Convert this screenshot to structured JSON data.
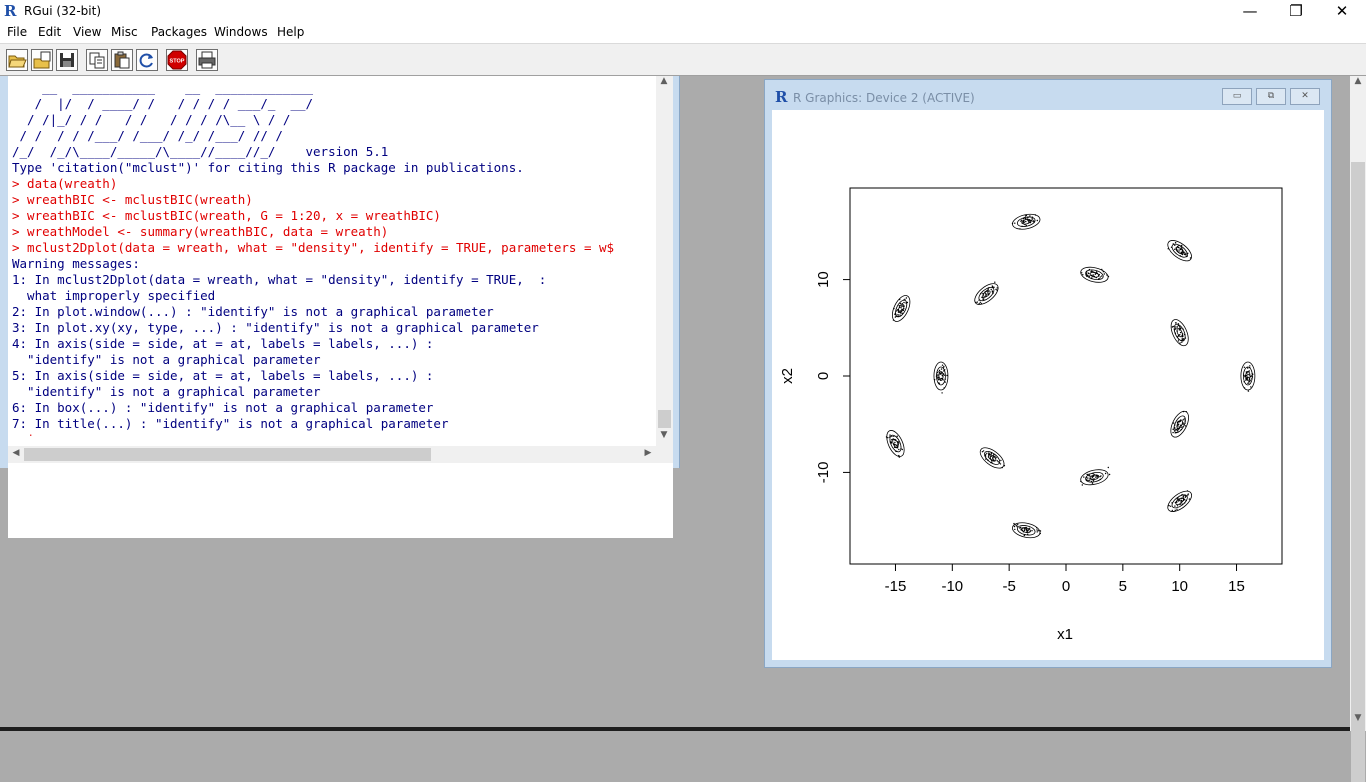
{
  "window": {
    "title": "RGui (32-bit)",
    "icon": "r-logo-icon",
    "controls": {
      "minimize": "—",
      "maximize": "❐",
      "close": "✕"
    }
  },
  "menu": [
    "File",
    "Edit",
    "View",
    "Misc",
    "Packages",
    "Windows",
    "Help"
  ],
  "toolbar": [
    {
      "name": "open-script-button",
      "icon": "open-folder-icon"
    },
    {
      "name": "load-workspace-button",
      "icon": "load-workspace-icon"
    },
    {
      "name": "save-workspace-button",
      "icon": "save-icon"
    },
    {
      "name": "copy-button",
      "icon": "copy-icon"
    },
    {
      "name": "paste-button",
      "icon": "paste-icon"
    },
    {
      "name": "copy-paste-button",
      "icon": "refresh-icon"
    },
    {
      "name": "stop-button",
      "icon": "stop-icon",
      "label": "STOP"
    },
    {
      "name": "print-button",
      "icon": "print-icon"
    }
  ],
  "console": {
    "lines": [
      {
        "type": "out",
        "text": "    __  ___________    __  _____________"
      },
      {
        "type": "out",
        "text": "   /  |/  / ____/ /   / / / / ___/_  __/"
      },
      {
        "type": "out",
        "text": "  / /|_/ / /   / /   / / / /\\__ \\ / /"
      },
      {
        "type": "out",
        "text": " / /  / / /___/ /___/ /_/ /___/ // /"
      },
      {
        "type": "out",
        "text": "/_/  /_/\\____/_____/\\____//____//_/    version 5.1"
      },
      {
        "type": "out",
        "text": "Type 'citation(\"mclust\")' for citing this R package in publications."
      },
      {
        "type": "in",
        "text": "> data(wreath)"
      },
      {
        "type": "in",
        "text": "> wreathBIC <- mclustBIC(wreath)"
      },
      {
        "type": "in",
        "text": "> wreathBIC <- mclustBIC(wreath, G = 1:20, x = wreathBIC)"
      },
      {
        "type": "in",
        "text": "> wreathModel <- summary(wreathBIC, data = wreath)"
      },
      {
        "type": "in",
        "text": "> mclust2Dplot(data = wreath, what = \"density\", identify = TRUE, parameters = w$"
      },
      {
        "type": "out",
        "text": "Warning messages:"
      },
      {
        "type": "out",
        "text": "1: In mclust2Dplot(data = wreath, what = \"density\", identify = TRUE,  :"
      },
      {
        "type": "out",
        "text": "  what improperly specified"
      },
      {
        "type": "out",
        "text": "2: In plot.window(...) : \"identify\" is not a graphical parameter"
      },
      {
        "type": "out",
        "text": "3: In plot.xy(xy, type, ...) : \"identify\" is not a graphical parameter"
      },
      {
        "type": "out",
        "text": "4: In axis(side = side, at = at, labels = labels, ...) :"
      },
      {
        "type": "out",
        "text": "  \"identify\" is not a graphical parameter"
      },
      {
        "type": "out",
        "text": "5: In axis(side = side, at = at, labels = labels, ...) :"
      },
      {
        "type": "out",
        "text": "  \"identify\" is not a graphical parameter"
      },
      {
        "type": "out",
        "text": "6: In box(...) : \"identify\" is not a graphical parameter"
      },
      {
        "type": "out",
        "text": "7: In title(...) : \"identify\" is not a graphical parameter"
      },
      {
        "type": "in",
        "text": "> |"
      }
    ]
  },
  "graphics": {
    "title": "R Graphics: Device 2 (ACTIVE)",
    "controls": {
      "minimize": "▭",
      "restore": "⧉",
      "close": "✕"
    }
  },
  "chart_data": {
    "type": "scatter",
    "title": "",
    "xlabel": "x1",
    "ylabel": "x2",
    "xlim": [
      -19,
      19
    ],
    "ylim": [
      -19.5,
      19.5
    ],
    "xticks": [
      -15,
      -10,
      -5,
      0,
      5,
      10,
      15
    ],
    "yticks": [
      -10,
      0,
      10
    ],
    "grid": false,
    "clusters": [
      {
        "x": -3.5,
        "y": 16
      },
      {
        "x": 2.5,
        "y": 10.5
      },
      {
        "x": 10,
        "y": 13
      },
      {
        "x": -7,
        "y": 8.5
      },
      {
        "x": -14.5,
        "y": 7
      },
      {
        "x": 10,
        "y": 4.5
      },
      {
        "x": -11,
        "y": 0
      },
      {
        "x": 16,
        "y": 0
      },
      {
        "x": 10,
        "y": -5
      },
      {
        "x": -15,
        "y": -7
      },
      {
        "x": -6.5,
        "y": -8.5
      },
      {
        "x": 2.5,
        "y": -10.5
      },
      {
        "x": 10,
        "y": -13
      },
      {
        "x": -3.5,
        "y": -16
      }
    ]
  }
}
